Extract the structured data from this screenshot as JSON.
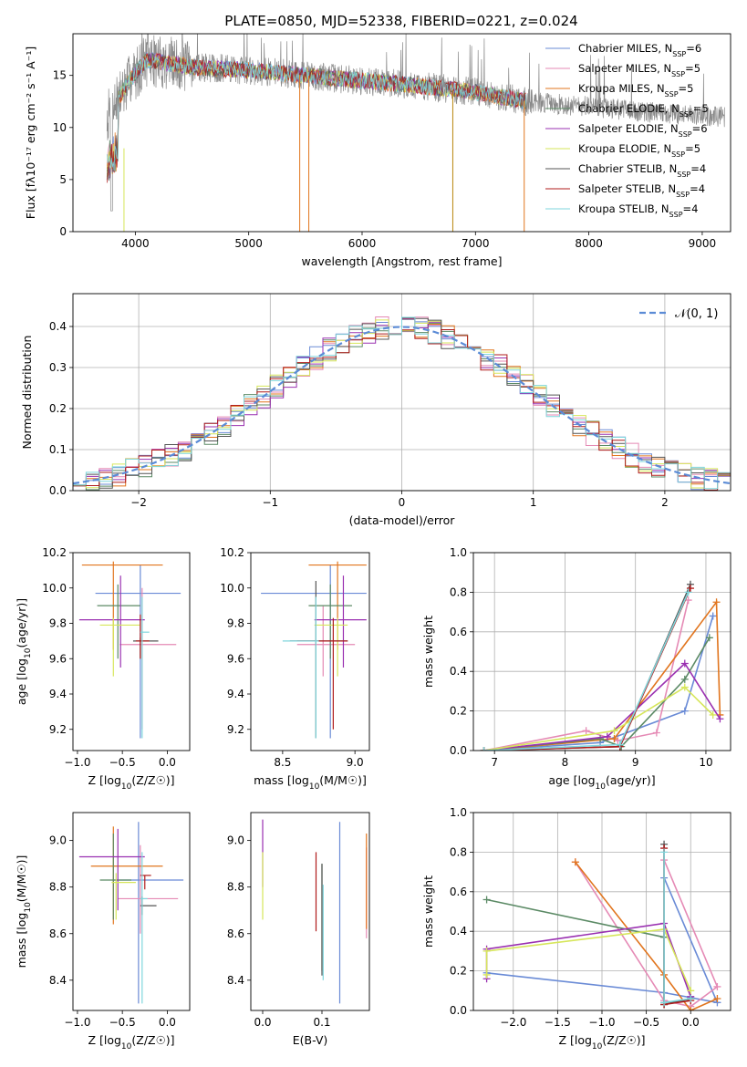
{
  "figure": {
    "title": "PLATE=0850, MJD=52338, FIBERID=0221, z=0.024",
    "series_colors": [
      "#6a8bd6",
      "#e58ab5",
      "#e1751e",
      "#5b8a65",
      "#9a30b1",
      "#d6e65a",
      "#555555",
      "#b01c1c",
      "#7fd6dc"
    ]
  },
  "chart_data": [
    {
      "id": "spectrum",
      "type": "line",
      "title": "PLATE=0850, MJD=52338, FIBERID=0221, z=0.024",
      "xlabel": "wavelength [Angstrom, rest frame]",
      "ylabel": "Flux [fλ10⁻¹⁷ erg cm⁻² s⁻¹ A⁻¹]",
      "xlim": [
        3450,
        9250
      ],
      "ylim": [
        0,
        19
      ],
      "xticks": [
        4000,
        5000,
        6000,
        7000,
        8000,
        9000
      ],
      "yticks": [
        0,
        5,
        10,
        15
      ],
      "grid": false,
      "legend_position": "top-right",
      "legend": [
        "Chabrier MILES, N_SSP=6",
        "Salpeter MILES, N_SSP=5",
        "Kroupa MILES, N_SSP=5",
        "Chabrier ELODIE, N_SSP=5",
        "Salpeter ELODIE, N_SSP=6",
        "Kroupa ELODIE, N_SSP=5",
        "Chabrier STELIB, N_SSP=4",
        "Salpeter STELIB, N_SSP=4",
        "Kroupa STELIB, N_SSP=4"
      ],
      "data_range": [
        3750,
        9200
      ],
      "model_trend": [
        [
          3750,
          11
        ],
        [
          3950,
          14.5
        ],
        [
          4100,
          16.5
        ],
        [
          4500,
          15.8
        ],
        [
          5000,
          15.5
        ],
        [
          5500,
          15
        ],
        [
          6000,
          14.5
        ],
        [
          6500,
          14
        ],
        [
          7000,
          13.4
        ],
        [
          7450,
          12.5
        ],
        [
          8000,
          12
        ],
        [
          8500,
          11.5
        ],
        [
          9200,
          11
        ]
      ],
      "model_gaps": [
        [
          5450,
          0
        ],
        [
          5530,
          0
        ],
        [
          6800,
          0
        ],
        [
          7430,
          0
        ]
      ]
    },
    {
      "id": "residuals",
      "type": "histogram",
      "xlabel": "(data-model)/error",
      "ylabel": "Normed distribution",
      "xlim": [
        -2.5,
        2.5
      ],
      "ylim": [
        0,
        0.48
      ],
      "xticks": [
        -2,
        -1,
        0,
        1,
        2
      ],
      "yticks": [
        0.0,
        0.1,
        0.2,
        0.3,
        0.4
      ],
      "grid": true,
      "legend_position": "top-right",
      "reference_label": "𝒩(0, 1)",
      "bin_start": -2.5,
      "bin_width": 0.1
    },
    {
      "id": "age-vs-Z",
      "type": "errorbar",
      "xlabel": "Z [log10(Z/Z☉)]",
      "ylabel": "age  [log10(age/yr)]",
      "xlim": [
        -1.05,
        0.25
      ],
      "ylim": [
        9.08,
        10.2
      ],
      "xticks": [
        -1.0,
        -0.5,
        0.0
      ],
      "yticks": [
        9.2,
        9.4,
        9.6,
        9.8,
        10.0,
        10.2
      ],
      "grid": false,
      "points": [
        {
          "x": -0.3,
          "y": 9.97,
          "xlo": -0.8,
          "xhi": 0.15,
          "ylo": 9.15,
          "yhi": 10.13
        },
        {
          "x": -0.28,
          "y": 9.68,
          "xlo": -0.53,
          "xhi": 0.1,
          "ylo": 9.2,
          "yhi": 10.0
        },
        {
          "x": -0.6,
          "y": 10.13,
          "xlo": -0.95,
          "xhi": -0.05,
          "ylo": 9.65,
          "yhi": 10.15
        },
        {
          "x": -0.55,
          "y": 9.9,
          "xlo": -0.78,
          "xhi": -0.3,
          "ylo": 9.6,
          "yhi": 10.02
        },
        {
          "x": -0.52,
          "y": 9.82,
          "xlo": -0.98,
          "xhi": -0.25,
          "ylo": 9.55,
          "yhi": 10.07
        },
        {
          "x": -0.6,
          "y": 9.79,
          "xlo": -0.75,
          "xhi": -0.3,
          "ylo": 9.5,
          "yhi": 9.83
        },
        {
          "x": -0.3,
          "y": 9.7,
          "xlo": -0.38,
          "xhi": -0.1,
          "ylo": 9.6,
          "yhi": 9.72
        },
        {
          "x": -0.3,
          "y": 9.7,
          "xlo": -0.35,
          "xhi": -0.2,
          "ylo": 9.6,
          "yhi": 9.85
        },
        {
          "x": -0.28,
          "y": 9.75,
          "xlo": -0.3,
          "xhi": -0.2,
          "ylo": 9.15,
          "yhi": 9.95
        }
      ]
    },
    {
      "id": "age-vs-mass",
      "type": "errorbar",
      "xlabel": "mass [log10(M/M☉)]",
      "ylabel": "",
      "xlim": [
        8.28,
        9.1
      ],
      "ylim": [
        9.08,
        10.2
      ],
      "xticks": [
        8.5,
        9.0
      ],
      "yticks": [
        9.2,
        9.4,
        9.6,
        9.8,
        10.0,
        10.2
      ],
      "grid": false,
      "points": [
        {
          "x": 8.83,
          "y": 9.97,
          "xlo": 8.35,
          "xhi": 9.08,
          "ylo": 9.15,
          "yhi": 10.13
        },
        {
          "x": 8.78,
          "y": 9.68,
          "xlo": 8.6,
          "xhi": 9.0,
          "ylo": 9.5,
          "yhi": 9.9
        },
        {
          "x": 8.88,
          "y": 10.13,
          "xlo": 8.68,
          "xhi": 9.08,
          "ylo": 9.65,
          "yhi": 10.15
        },
        {
          "x": 8.83,
          "y": 9.9,
          "xlo": 8.68,
          "xhi": 8.98,
          "ylo": 9.6,
          "yhi": 10.02
        },
        {
          "x": 8.92,
          "y": 9.82,
          "xlo": 8.72,
          "xhi": 9.08,
          "ylo": 9.55,
          "yhi": 10.07
        },
        {
          "x": 8.88,
          "y": 9.79,
          "xlo": 8.72,
          "xhi": 8.95,
          "ylo": 9.5,
          "yhi": 9.83
        },
        {
          "x": 8.73,
          "y": 9.7,
          "xlo": 8.55,
          "xhi": 8.95,
          "ylo": 9.15,
          "yhi": 10.04
        },
        {
          "x": 8.85,
          "y": 9.7,
          "xlo": 8.6,
          "xhi": 8.95,
          "ylo": 9.2,
          "yhi": 9.83
        },
        {
          "x": 8.73,
          "y": 9.7,
          "xlo": 8.5,
          "xhi": 8.75,
          "ylo": 9.15,
          "yhi": 9.95
        }
      ]
    },
    {
      "id": "weight-vs-age",
      "type": "line",
      "xlabel": "age  [log10(age/yr)]",
      "ylabel": "mass weight",
      "xlim": [
        6.7,
        10.35
      ],
      "ylim": [
        0,
        1.0
      ],
      "xticks": [
        7,
        8,
        9,
        10
      ],
      "yticks": [
        0.0,
        0.2,
        0.4,
        0.6,
        0.8,
        1.0
      ],
      "grid": true,
      "series": [
        {
          "x": [
            6.85,
            8.5,
            9.7,
            10.1
          ],
          "y": [
            0.0,
            0.04,
            0.2,
            0.68
          ]
        },
        {
          "x": [
            6.85,
            8.3,
            8.75,
            9.3,
            9.75
          ],
          "y": [
            0.0,
            0.1,
            0.05,
            0.09,
            0.76
          ]
        },
        {
          "x": [
            6.85,
            8.7,
            10.15,
            10.2
          ],
          "y": [
            0.0,
            0.06,
            0.75,
            0.18
          ]
        },
        {
          "x": [
            6.85,
            8.5,
            8.8,
            9.7,
            10.05
          ],
          "y": [
            0.0,
            0.06,
            0.02,
            0.36,
            0.57
          ]
        },
        {
          "x": [
            6.85,
            8.6,
            9.7,
            10.2
          ],
          "y": [
            0.0,
            0.07,
            0.44,
            0.16
          ]
        },
        {
          "x": [
            6.85,
            8.7,
            9.7,
            10.1
          ],
          "y": [
            0.0,
            0.1,
            0.32,
            0.18
          ]
        },
        {
          "x": [
            6.85,
            8.78,
            9.78
          ],
          "y": [
            0.0,
            0.02,
            0.84
          ]
        },
        {
          "x": [
            6.85,
            8.78,
            9.78
          ],
          "y": [
            0.0,
            0.02,
            0.82
          ]
        },
        {
          "x": [
            6.85,
            8.78,
            9.75
          ],
          "y": [
            0.0,
            0.03,
            0.8
          ]
        }
      ]
    },
    {
      "id": "mass-vs-Z",
      "type": "errorbar",
      "xlabel": "Z [log10(Z/Z☉)]",
      "ylabel": "mass [log10(M/M☉)]",
      "xlim": [
        -1.05,
        0.25
      ],
      "ylim": [
        8.27,
        9.12
      ],
      "xticks": [
        -1.0,
        -0.5,
        0.0
      ],
      "yticks": [
        8.4,
        8.6,
        8.8,
        9.0
      ],
      "grid": false,
      "points": [
        {
          "x": -0.32,
          "y": 8.83,
          "xlo": -0.6,
          "xhi": 0.18,
          "ylo": 8.3,
          "yhi": 9.08
        },
        {
          "x": -0.3,
          "y": 8.75,
          "xlo": -0.55,
          "xhi": 0.12,
          "ylo": 8.6,
          "yhi": 8.98
        },
        {
          "x": -0.6,
          "y": 8.89,
          "xlo": -0.85,
          "xhi": -0.05,
          "ylo": 8.64,
          "yhi": 9.06
        },
        {
          "x": -0.6,
          "y": 8.83,
          "xlo": -0.75,
          "xhi": -0.4,
          "ylo": 8.66,
          "yhi": 9.03
        },
        {
          "x": -0.55,
          "y": 8.93,
          "xlo": -0.98,
          "xhi": -0.25,
          "ylo": 8.7,
          "yhi": 9.05
        },
        {
          "x": -0.57,
          "y": 8.82,
          "xlo": -0.62,
          "xhi": -0.35,
          "ylo": 8.66,
          "yhi": 8.86
        },
        {
          "x": -0.28,
          "y": 8.72,
          "xlo": -0.3,
          "xhi": -0.12,
          "ylo": 8.68,
          "yhi": 8.76
        },
        {
          "x": -0.25,
          "y": 8.85,
          "xlo": -0.3,
          "xhi": -0.18,
          "ylo": 8.79,
          "yhi": 8.85
        },
        {
          "x": -0.28,
          "y": 8.75,
          "xlo": -0.3,
          "xhi": -0.22,
          "ylo": 8.3,
          "yhi": 8.95
        }
      ]
    },
    {
      "id": "mass-vs-EBV",
      "type": "errorbar",
      "xlabel": "E(B-V)",
      "ylabel": "",
      "xlim": [
        -0.02,
        0.18
      ],
      "ylim": [
        8.27,
        9.12
      ],
      "xticks": [
        0.0,
        0.1
      ],
      "yticks": [
        8.4,
        8.6,
        8.8,
        9.0
      ],
      "grid": false,
      "points": [
        {
          "x": 0.13,
          "y": 8.83,
          "ylo": 8.3,
          "yhi": 9.08
        },
        {
          "x": 0.175,
          "y": 8.75,
          "ylo": 8.58,
          "yhi": 8.97
        },
        {
          "x": 0.175,
          "y": 8.85,
          "ylo": 8.62,
          "yhi": 9.03
        },
        {
          "x": 0.1,
          "y": 8.7,
          "ylo": 8.44,
          "yhi": 8.9
        },
        {
          "x": 0.0,
          "y": 8.95,
          "ylo": 8.8,
          "yhi": 9.09
        },
        {
          "x": 0.0,
          "y": 8.8,
          "ylo": 8.66,
          "yhi": 8.95
        },
        {
          "x": 0.1,
          "y": 8.72,
          "ylo": 8.42,
          "yhi": 8.9
        },
        {
          "x": 0.09,
          "y": 8.78,
          "ylo": 8.61,
          "yhi": 8.95
        },
        {
          "x": 0.102,
          "y": 8.6,
          "ylo": 8.4,
          "yhi": 8.81
        }
      ]
    },
    {
      "id": "weight-vs-Z",
      "type": "line",
      "xlabel": "Z [log10(Z/Z☉)]",
      "ylabel": "mass weight",
      "xlim": [
        -2.45,
        0.45
      ],
      "ylim": [
        0,
        1.0
      ],
      "xticks": [
        -2.0,
        -1.5,
        -1.0,
        -0.5,
        0.0
      ],
      "yticks": [
        0.0,
        0.2,
        0.4,
        0.6,
        0.8,
        1.0
      ],
      "grid": true,
      "series": [
        {
          "x": [
            -2.3,
            -0.3,
            0.3,
            -0.3
          ],
          "y": [
            0.19,
            0.09,
            0.04,
            0.67
          ]
        },
        {
          "x": [
            -1.3,
            -0.3,
            0.0,
            0.3,
            -0.3
          ],
          "y": [
            0.75,
            0.05,
            0.02,
            0.12,
            0.76
          ]
        },
        {
          "x": [
            -1.3,
            -0.3,
            0.0,
            0.3
          ],
          "y": [
            0.75,
            0.18,
            0.0,
            0.06
          ]
        },
        {
          "x": [
            -2.3,
            -0.3,
            -0.3,
            0.0
          ],
          "y": [
            0.56,
            0.37,
            0.03,
            0.06
          ]
        },
        {
          "x": [
            -2.3,
            -2.3,
            -0.3,
            0.0
          ],
          "y": [
            0.16,
            0.31,
            0.44,
            0.07
          ]
        },
        {
          "x": [
            -2.3,
            -2.3,
            -0.3,
            0.0
          ],
          "y": [
            0.18,
            0.3,
            0.41,
            0.1
          ]
        },
        {
          "x": [
            -0.3,
            -0.3,
            0.0
          ],
          "y": [
            0.84,
            0.03,
            0.06
          ]
        },
        {
          "x": [
            -0.3,
            -0.3,
            0.0
          ],
          "y": [
            0.82,
            0.03,
            0.05
          ]
        },
        {
          "x": [
            -0.3,
            -0.3,
            0.0
          ],
          "y": [
            0.8,
            0.04,
            0.06
          ]
        }
      ]
    }
  ]
}
